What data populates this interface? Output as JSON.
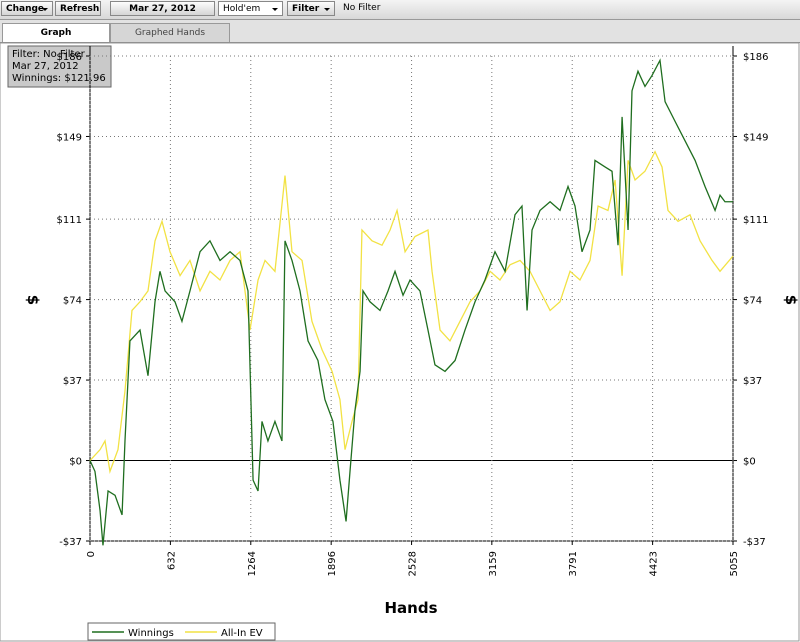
{
  "toolbar": {
    "change_button": "Change",
    "refresh_button": "Refresh",
    "date": "Mar 27, 2012",
    "game": "Hold'em",
    "filter_button": "Filter",
    "filter_status": "No Filter"
  },
  "tabs": [
    "Graph",
    "Graphed Hands"
  ],
  "info_box": [
    "Filter: No Filter",
    "Mar 27, 2012",
    "Winnings: $121.96"
  ],
  "chart_data": {
    "type": "line",
    "x_label": "Hands",
    "y_label": "$",
    "xlim": [
      0,
      5055
    ],
    "xticks": [
      0,
      632,
      1264,
      1896,
      2528,
      3159,
      3791,
      4423,
      5055
    ],
    "ylim": [
      -37,
      186
    ],
    "yticks": [
      {
        "value": -37,
        "label": "-$37"
      },
      {
        "value": 0,
        "label": "$0"
      },
      {
        "value": 37,
        "label": "$37"
      },
      {
        "value": 74,
        "label": "$74"
      },
      {
        "value": 111,
        "label": "$111"
      },
      {
        "value": 149,
        "label": "$149"
      },
      {
        "value": 186,
        "label": "$186"
      }
    ],
    "grid": true,
    "legend": "bottom-left",
    "series": [
      {
        "name": "Winnings",
        "color": "#1f6e1f",
        "x": [
          0,
          39,
          79,
          102,
          142,
          197,
          252,
          275,
          314,
          393,
          456,
          511,
          550,
          590,
          668,
          723,
          786,
          865,
          943,
          1022,
          1101,
          1179,
          1242,
          1282,
          1321,
          1352,
          1399,
          1454,
          1509,
          1533,
          1588,
          1651,
          1714,
          1792,
          1847,
          1910,
          1965,
          2013,
          2044,
          2083,
          2123,
          2146,
          2201,
          2280,
          2343,
          2398,
          2461,
          2516,
          2594,
          2657,
          2712,
          2791,
          2870,
          2948,
          3027,
          3105,
          3184,
          3263,
          3341,
          3396,
          3436,
          3475,
          3538,
          3617,
          3695,
          3758,
          3813,
          3868,
          3931,
          3970,
          4049,
          4104,
          4151,
          4183,
          4230,
          4261,
          4308,
          4363,
          4418,
          4481,
          4521,
          4599,
          4678,
          4757,
          4835,
          4914,
          4953,
          4992,
          5055
        ],
        "values": [
          0,
          -5,
          -23,
          -39,
          -14,
          -16,
          -25,
          9,
          55,
          60,
          39,
          73,
          87,
          78,
          73,
          64,
          78,
          96,
          101,
          92,
          96,
          92,
          78,
          -9,
          -14,
          18,
          9,
          18,
          9,
          101,
          92,
          78,
          55,
          46,
          28,
          18,
          -9,
          -28,
          -5,
          23,
          41,
          78,
          73,
          69,
          78,
          87,
          76,
          83,
          78,
          60,
          44,
          41,
          46,
          60,
          73,
          83,
          96,
          87,
          113,
          117,
          69,
          106,
          115,
          119,
          115,
          126,
          117,
          96,
          106,
          138,
          135,
          133,
          99,
          158,
          106,
          170,
          179,
          172,
          177,
          184,
          165,
          156,
          147,
          138,
          126,
          115,
          122,
          119,
          119
        ]
      },
      {
        "name": "All-In EV",
        "color": "#f2e244",
        "x": [
          0,
          79,
          118,
          157,
          220,
          275,
          330,
          393,
          456,
          511,
          566,
          629,
          708,
          786,
          865,
          943,
          1022,
          1101,
          1179,
          1258,
          1321,
          1376,
          1454,
          1533,
          1588,
          1667,
          1745,
          1824,
          1903,
          1965,
          2005,
          2060,
          2107,
          2138,
          2217,
          2296,
          2359,
          2414,
          2477,
          2555,
          2657,
          2689,
          2752,
          2830,
          2909,
          2988,
          3066,
          3145,
          3223,
          3302,
          3381,
          3459,
          3538,
          3617,
          3695,
          3774,
          3852,
          3931,
          3994,
          4072,
          4128,
          4183,
          4230,
          4285,
          4363,
          4442,
          4497,
          4544,
          4623,
          4717,
          4796,
          4890,
          4953,
          5055
        ],
        "values": [
          0,
          5,
          9,
          -5,
          5,
          32,
          69,
          73,
          78,
          101,
          110,
          96,
          85,
          92,
          78,
          87,
          83,
          92,
          96,
          60,
          83,
          92,
          87,
          131,
          96,
          92,
          64,
          51,
          41,
          28,
          5,
          18,
          28,
          106,
          101,
          99,
          106,
          115,
          96,
          103,
          106,
          87,
          60,
          55,
          64,
          73,
          78,
          87,
          83,
          90,
          92,
          87,
          78,
          69,
          73,
          87,
          83,
          92,
          117,
          115,
          129,
          85,
          138,
          129,
          133,
          142,
          135,
          115,
          110,
          113,
          101,
          92,
          87,
          94
        ]
      }
    ]
  }
}
